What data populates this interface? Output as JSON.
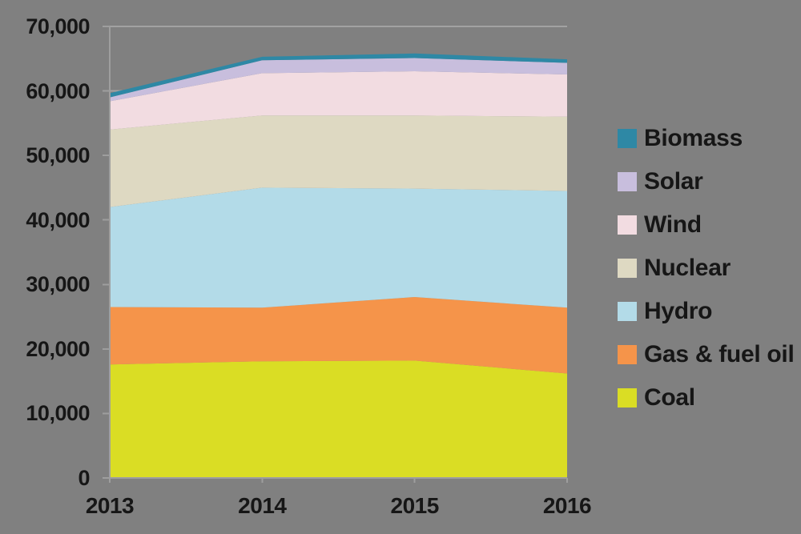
{
  "chart_data": {
    "type": "area",
    "stacked": true,
    "title": "",
    "x": [
      2013,
      2014,
      2015,
      2016
    ],
    "x_labels": [
      "2013",
      "2014",
      "2015",
      "2016"
    ],
    "series": [
      {
        "name": "Coal",
        "color": "#dadd24",
        "values": [
          17600,
          18100,
          18200,
          16200
        ]
      },
      {
        "name": "Gas & fuel oil",
        "color": "#f5944a",
        "values": [
          8900,
          8300,
          9850,
          10200
        ]
      },
      {
        "name": "Hydro",
        "color": "#b3dbe8",
        "values": [
          15500,
          18600,
          16800,
          18100
        ]
      },
      {
        "name": "Nuclear",
        "color": "#ded9c2",
        "values": [
          12000,
          11200,
          11350,
          11500
        ]
      },
      {
        "name": "Wind",
        "color": "#f2dce1",
        "values": [
          4400,
          6550,
          6850,
          6550
        ]
      },
      {
        "name": "Solar",
        "color": "#c8bedd",
        "values": [
          600,
          2000,
          2050,
          1800
        ]
      },
      {
        "name": "Biomass",
        "color": "#2e88a5",
        "values": [
          650,
          550,
          700,
          550
        ]
      }
    ],
    "stack_order_bottom_to_top": [
      "Coal",
      "Gas & fuel oil",
      "Hydro",
      "Nuclear",
      "Wind",
      "Solar",
      "Biomass"
    ],
    "legend": {
      "position": "right",
      "order_top_to_bottom": [
        "Biomass",
        "Solar",
        "Wind",
        "Nuclear",
        "Hydro",
        "Gas & fuel oil",
        "Coal"
      ]
    },
    "y_axis": {
      "min": 0,
      "max": 70000,
      "tick_interval": 10000,
      "tick_labels": [
        "0",
        "10,000",
        "20,000",
        "30,000",
        "40,000",
        "50,000",
        "60,000",
        "70,000"
      ]
    },
    "grid": true,
    "colors": {
      "background": "#808080",
      "gridline": "#a2a2a2",
      "axis": "#9e9e9e",
      "text": "#161616"
    }
  }
}
